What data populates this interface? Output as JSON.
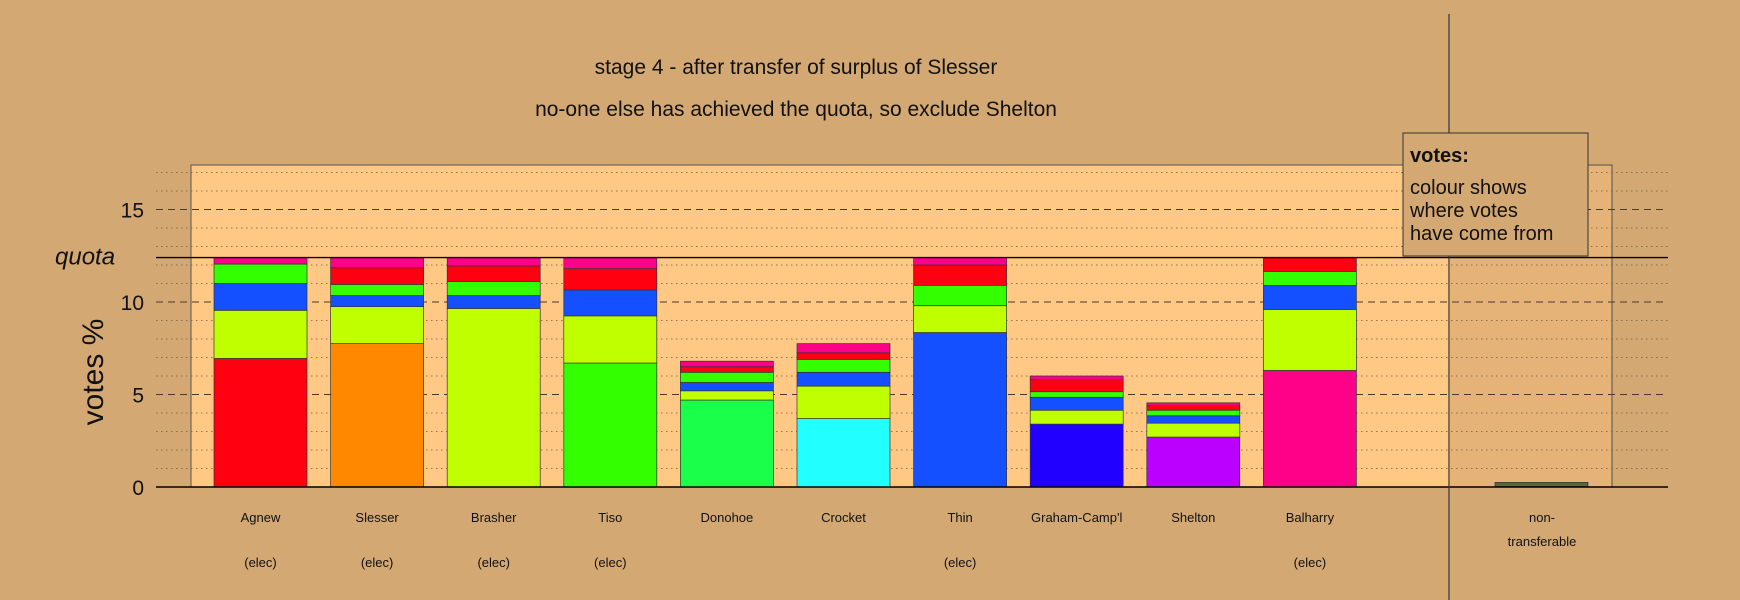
{
  "chart_data": {
    "type": "bar",
    "stacked": true,
    "title": "stage 4 - after transfer of surplus of Slesser",
    "subtitle": "no-one else has achieved the quota, so exclude Shelton",
    "ylabel": "votes %",
    "ylim": [
      0,
      17
    ],
    "yticks": [
      "0",
      "5",
      "10",
      "15"
    ],
    "quota": 12.4,
    "quota_label": "quota",
    "grid": true,
    "legend": {
      "placement": "top-right",
      "title": "votes:",
      "lines": [
        "colour shows",
        "where votes",
        "have come from"
      ]
    },
    "source_colors": {
      "Agnew": "#FF0010",
      "Slesser": "#FF8800",
      "Brasher": "#BFFF00",
      "Tiso": "#33FF00",
      "Donohoe": "#1AFF4A",
      "Crocket": "#22FFFF",
      "Thin": "#1450FF",
      "Graham-Camp'l": "#2200FF",
      "Shelton": "#BB00FF",
      "Balharry": "#FF0088"
    },
    "bars": [
      {
        "name": "Agnew",
        "status": "(elec)",
        "segments": [
          {
            "source": "Agnew",
            "value": 6.95
          },
          {
            "source": "Brasher",
            "value": 2.6
          },
          {
            "source": "Thin",
            "value": 1.45
          },
          {
            "source": "Tiso",
            "value": 1.05
          },
          {
            "source": "Balharry",
            "value": 0.35
          }
        ]
      },
      {
        "name": "Slesser",
        "status": "(elec)",
        "segments": [
          {
            "source": "Slesser",
            "value": 7.75
          },
          {
            "source": "Brasher",
            "value": 2.0
          },
          {
            "source": "Thin",
            "value": 0.6
          },
          {
            "source": "Tiso",
            "value": 0.6
          },
          {
            "source": "Agnew",
            "value": 0.9
          },
          {
            "source": "Balharry",
            "value": 0.55
          }
        ]
      },
      {
        "name": "Brasher",
        "status": "(elec)",
        "segments": [
          {
            "source": "Brasher",
            "value": 9.65
          },
          {
            "source": "Thin",
            "value": 0.7
          },
          {
            "source": "Tiso",
            "value": 0.75
          },
          {
            "source": "Agnew",
            "value": 0.85
          },
          {
            "source": "Balharry",
            "value": 0.45
          }
        ]
      },
      {
        "name": "Tiso",
        "status": "(elec)",
        "segments": [
          {
            "source": "Tiso",
            "value": 6.7
          },
          {
            "source": "Brasher",
            "value": 2.55
          },
          {
            "source": "Thin",
            "value": 1.4
          },
          {
            "source": "Agnew",
            "value": 1.15
          },
          {
            "source": "Balharry",
            "value": 0.6
          }
        ]
      },
      {
        "name": "Donohoe",
        "status": "",
        "segments": [
          {
            "source": "Donohoe",
            "value": 4.7
          },
          {
            "source": "Brasher",
            "value": 0.5
          },
          {
            "source": "Thin",
            "value": 0.45
          },
          {
            "source": "Tiso",
            "value": 0.55
          },
          {
            "source": "Agnew",
            "value": 0.3
          },
          {
            "source": "Balharry",
            "value": 0.3
          }
        ]
      },
      {
        "name": "Crocket",
        "status": "",
        "segments": [
          {
            "source": "Crocket",
            "value": 3.7
          },
          {
            "source": "Brasher",
            "value": 1.75
          },
          {
            "source": "Thin",
            "value": 0.75
          },
          {
            "source": "Tiso",
            "value": 0.7
          },
          {
            "source": "Agnew",
            "value": 0.35
          },
          {
            "source": "Balharry",
            "value": 0.5
          }
        ]
      },
      {
        "name": "Thin",
        "status": "(elec)",
        "segments": [
          {
            "source": "Thin",
            "value": 8.35
          },
          {
            "source": "Brasher",
            "value": 1.45
          },
          {
            "source": "Tiso",
            "value": 1.1
          },
          {
            "source": "Agnew",
            "value": 1.1
          },
          {
            "source": "Balharry",
            "value": 0.4
          }
        ]
      },
      {
        "name": "Graham-Camp'l",
        "status": "",
        "segments": [
          {
            "source": "Graham-Camp'l",
            "value": 3.4
          },
          {
            "source": "Brasher",
            "value": 0.75
          },
          {
            "source": "Thin",
            "value": 0.7
          },
          {
            "source": "Tiso",
            "value": 0.3
          },
          {
            "source": "Agnew",
            "value": 0.65
          },
          {
            "source": "Balharry",
            "value": 0.2
          }
        ]
      },
      {
        "name": "Shelton",
        "status": "",
        "segments": [
          {
            "source": "Shelton",
            "value": 2.7
          },
          {
            "source": "Brasher",
            "value": 0.75
          },
          {
            "source": "Thin",
            "value": 0.4
          },
          {
            "source": "Tiso",
            "value": 0.3
          },
          {
            "source": "Agnew",
            "value": 0.25
          },
          {
            "source": "Balharry",
            "value": 0.15
          }
        ]
      },
      {
        "name": "Balharry",
        "status": "(elec)",
        "segments": [
          {
            "source": "Balharry",
            "value": 6.3
          },
          {
            "source": "Brasher",
            "value": 3.3
          },
          {
            "source": "Thin",
            "value": 1.3
          },
          {
            "source": "Tiso",
            "value": 0.75
          },
          {
            "source": "Agnew",
            "value": 0.75
          }
        ]
      }
    ],
    "non_transferable": {
      "label_lines": [
        "non-",
        "transferable"
      ],
      "value": 0.25,
      "color": "#556B2F"
    }
  }
}
